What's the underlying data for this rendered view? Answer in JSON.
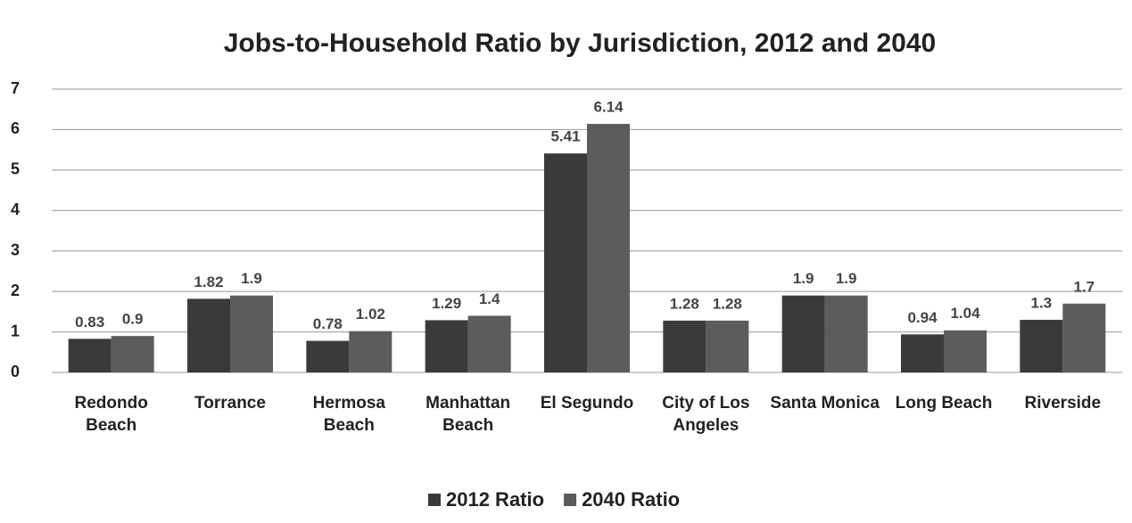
{
  "chart_data": {
    "type": "bar",
    "title": "Jobs-to-Household Ratio by Jurisdiction, 2012 and 2040",
    "categories": [
      "Redondo Beach",
      "Torrance",
      "Hermosa Beach",
      "Manhattan Beach",
      "El Segundo",
      "City of Los Angeles",
      "Santa Monica",
      "Long Beach",
      "Riverside"
    ],
    "series": [
      {
        "name": "2012 Ratio",
        "color": "#3a3a3a",
        "values": [
          0.83,
          1.82,
          0.78,
          1.29,
          5.41,
          1.28,
          1.9,
          0.94,
          1.3
        ]
      },
      {
        "name": "2040 Ratio",
        "color": "#5c5c5c",
        "values": [
          0.9,
          1.9,
          1.02,
          1.4,
          6.14,
          1.28,
          1.9,
          1.04,
          1.7
        ]
      }
    ],
    "ylim": [
      0,
      7
    ],
    "yticks": [
      0,
      1,
      2,
      3,
      4,
      5,
      6,
      7
    ],
    "grid": true,
    "legend": "bottom"
  }
}
